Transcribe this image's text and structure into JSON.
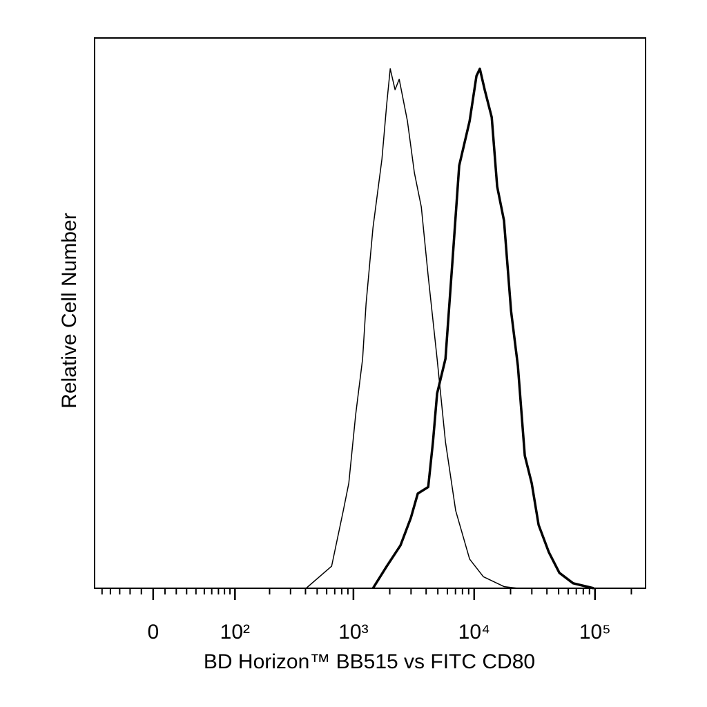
{
  "chart_data": {
    "type": "histogram-overlay",
    "xlabel": "BD Horizon™ BB515 vs FITC CD80",
    "ylabel": "Relative Cell Number",
    "xscale": "biexponential",
    "xlim": [
      -60,
      262144
    ],
    "ylim": [
      0,
      100
    ],
    "xticks": [
      0,
      {
        "value": 100,
        "label": "10²"
      },
      {
        "value": 1000,
        "label": "10³"
      },
      {
        "value": 10000,
        "label": "10⁴"
      },
      {
        "value": 100000,
        "label": "10⁵"
      }
    ],
    "xminor": [
      -50,
      -40,
      -30,
      -20,
      -10,
      10,
      20,
      30,
      40,
      50,
      60,
      70,
      80,
      90,
      200,
      300,
      400,
      500,
      600,
      700,
      800,
      900,
      2000,
      3000,
      4000,
      5000,
      6000,
      7000,
      8000,
      9000,
      20000,
      30000,
      40000,
      50000,
      60000,
      70000,
      80000,
      90000,
      200000
    ],
    "series": [
      {
        "color": "#000000",
        "line_width": 1.5,
        "x": [
          405,
          659,
          824,
          916,
          1045,
          1191,
          1273,
          1452,
          1722,
          1888,
          2018,
          2213,
          2393,
          2800,
          3199,
          3648,
          4159,
          4932,
          5781,
          7031,
          9162,
          11912,
          17660,
          23010
        ],
        "values": [
          0,
          4.0,
          14.1,
          19.1,
          31.6,
          41.7,
          51.7,
          65.5,
          78.0,
          88.1,
          94.4,
          90.6,
          92.5,
          84.9,
          75.5,
          69.3,
          56.7,
          41.7,
          26.6,
          14.1,
          5.3,
          2.1,
          0.3,
          0
        ]
      },
      {
        "color": "#000000",
        "line_width": 3.5,
        "x": [
          1452,
          1888,
          2455,
          2992,
          3413,
          4159,
          4560,
          4932,
          5781,
          6592,
          7516,
          9162,
          10447,
          11143,
          12218,
          13964,
          15488,
          17660,
          20184,
          23010,
          26242,
          29923,
          34119,
          41591,
          50699,
          65917,
          97724
        ],
        "values": [
          0,
          4.0,
          7.8,
          12.8,
          17.2,
          18.4,
          26.6,
          35.4,
          41.7,
          59.2,
          76.8,
          84.9,
          93.1,
          94.4,
          90.6,
          85.6,
          73.0,
          66.8,
          50.4,
          40.4,
          24.1,
          19.1,
          11.5,
          6.5,
          2.8,
          0.9,
          0
        ]
      }
    ]
  }
}
